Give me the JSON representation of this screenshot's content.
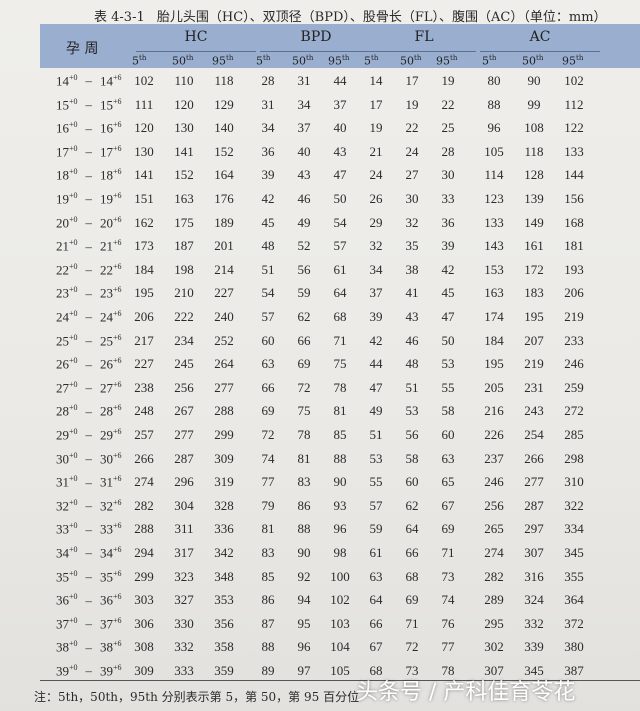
{
  "caption": {
    "table_number": "表 4-3-1",
    "title": "胎儿头围（HC）、双顶径（BPD）、股骨长（FL）、腹围（AC）（单位：mm）"
  },
  "header": {
    "row_label": "孕 周",
    "groups": [
      "HC",
      "BPD",
      "FL",
      "AC"
    ],
    "percentile_base": [
      "5",
      "50",
      "95"
    ],
    "percentile_suffix": "th"
  },
  "rows": [
    {
      "w": "14",
      "hc": [
        102,
        110,
        118
      ],
      "bpd": [
        28,
        31,
        44
      ],
      "fl": [
        14,
        17,
        19
      ],
      "ac": [
        80,
        90,
        102
      ]
    },
    {
      "w": "15",
      "hc": [
        111,
        120,
        129
      ],
      "bpd": [
        31,
        34,
        37
      ],
      "fl": [
        17,
        19,
        22
      ],
      "ac": [
        88,
        99,
        112
      ]
    },
    {
      "w": "16",
      "hc": [
        120,
        130,
        140
      ],
      "bpd": [
        34,
        37,
        40
      ],
      "fl": [
        19,
        22,
        25
      ],
      "ac": [
        96,
        108,
        122
      ]
    },
    {
      "w": "17",
      "hc": [
        130,
        141,
        152
      ],
      "bpd": [
        36,
        40,
        43
      ],
      "fl": [
        21,
        24,
        28
      ],
      "ac": [
        105,
        118,
        133
      ]
    },
    {
      "w": "18",
      "hc": [
        141,
        152,
        164
      ],
      "bpd": [
        39,
        43,
        47
      ],
      "fl": [
        24,
        27,
        30
      ],
      "ac": [
        114,
        128,
        144
      ]
    },
    {
      "w": "19",
      "hc": [
        151,
        163,
        176
      ],
      "bpd": [
        42,
        46,
        50
      ],
      "fl": [
        26,
        30,
        33
      ],
      "ac": [
        123,
        139,
        156
      ]
    },
    {
      "w": "20",
      "hc": [
        162,
        175,
        189
      ],
      "bpd": [
        45,
        49,
        54
      ],
      "fl": [
        29,
        32,
        36
      ],
      "ac": [
        133,
        149,
        168
      ]
    },
    {
      "w": "21",
      "hc": [
        173,
        187,
        201
      ],
      "bpd": [
        48,
        52,
        57
      ],
      "fl": [
        32,
        35,
        39
      ],
      "ac": [
        143,
        161,
        181
      ]
    },
    {
      "w": "22",
      "hc": [
        184,
        198,
        214
      ],
      "bpd": [
        51,
        56,
        61
      ],
      "fl": [
        34,
        38,
        42
      ],
      "ac": [
        153,
        172,
        193
      ]
    },
    {
      "w": "23",
      "hc": [
        195,
        210,
        227
      ],
      "bpd": [
        54,
        59,
        64
      ],
      "fl": [
        37,
        41,
        45
      ],
      "ac": [
        163,
        183,
        206
      ]
    },
    {
      "w": "24",
      "hc": [
        206,
        222,
        240
      ],
      "bpd": [
        57,
        62,
        68
      ],
      "fl": [
        39,
        43,
        47
      ],
      "ac": [
        174,
        195,
        219
      ]
    },
    {
      "w": "25",
      "hc": [
        217,
        234,
        252
      ],
      "bpd": [
        60,
        66,
        71
      ],
      "fl": [
        42,
        46,
        50
      ],
      "ac": [
        184,
        207,
        233
      ]
    },
    {
      "w": "26",
      "hc": [
        227,
        245,
        264
      ],
      "bpd": [
        63,
        69,
        75
      ],
      "fl": [
        44,
        48,
        53
      ],
      "ac": [
        195,
        219,
        246
      ]
    },
    {
      "w": "27",
      "hc": [
        238,
        256,
        277
      ],
      "bpd": [
        66,
        72,
        78
      ],
      "fl": [
        47,
        51,
        55
      ],
      "ac": [
        205,
        231,
        259
      ]
    },
    {
      "w": "28",
      "hc": [
        248,
        267,
        288
      ],
      "bpd": [
        69,
        75,
        81
      ],
      "fl": [
        49,
        53,
        58
      ],
      "ac": [
        216,
        243,
        272
      ]
    },
    {
      "w": "29",
      "hc": [
        257,
        277,
        299
      ],
      "bpd": [
        72,
        78,
        85
      ],
      "fl": [
        51,
        56,
        60
      ],
      "ac": [
        226,
        254,
        285
      ]
    },
    {
      "w": "30",
      "hc": [
        266,
        287,
        309
      ],
      "bpd": [
        74,
        81,
        88
      ],
      "fl": [
        53,
        58,
        63
      ],
      "ac": [
        237,
        266,
        298
      ]
    },
    {
      "w": "31",
      "hc": [
        274,
        296,
        319
      ],
      "bpd": [
        77,
        83,
        90
      ],
      "fl": [
        55,
        60,
        65
      ],
      "ac": [
        246,
        277,
        310
      ]
    },
    {
      "w": "32",
      "hc": [
        282,
        304,
        328
      ],
      "bpd": [
        79,
        86,
        93
      ],
      "fl": [
        57,
        62,
        67
      ],
      "ac": [
        256,
        287,
        322
      ]
    },
    {
      "w": "33",
      "hc": [
        288,
        311,
        336
      ],
      "bpd": [
        81,
        88,
        96
      ],
      "fl": [
        59,
        64,
        69
      ],
      "ac": [
        265,
        297,
        334
      ]
    },
    {
      "w": "34",
      "hc": [
        294,
        317,
        342
      ],
      "bpd": [
        83,
        90,
        98
      ],
      "fl": [
        61,
        66,
        71
      ],
      "ac": [
        274,
        307,
        345
      ]
    },
    {
      "w": "35",
      "hc": [
        299,
        323,
        348
      ],
      "bpd": [
        85,
        92,
        100
      ],
      "fl": [
        63,
        68,
        73
      ],
      "ac": [
        282,
        316,
        355
      ]
    },
    {
      "w": "36",
      "hc": [
        303,
        327,
        353
      ],
      "bpd": [
        86,
        94,
        102
      ],
      "fl": [
        64,
        69,
        74
      ],
      "ac": [
        289,
        324,
        364
      ]
    },
    {
      "w": "37",
      "hc": [
        306,
        330,
        356
      ],
      "bpd": [
        87,
        95,
        103
      ],
      "fl": [
        66,
        71,
        76
      ],
      "ac": [
        295,
        332,
        372
      ]
    },
    {
      "w": "38",
      "hc": [
        308,
        332,
        358
      ],
      "bpd": [
        88,
        96,
        104
      ],
      "fl": [
        67,
        72,
        77
      ],
      "ac": [
        302,
        339,
        380
      ]
    },
    {
      "w": "39",
      "hc": [
        309,
        333,
        359
      ],
      "bpd": [
        89,
        97,
        105
      ],
      "fl": [
        68,
        73,
        78
      ],
      "ac": [
        307,
        345,
        387
      ]
    }
  ],
  "week_suffix_start": "+0",
  "week_suffix_end": "+6",
  "week_separator": "–",
  "note": "注：5th，50th，95th 分别表示第 5，第 50，第 95 百分位",
  "watermark": "头条号 / 产科佳育苓花",
  "colors": {
    "header_bg": "#9aaed0",
    "text": "#2b2b2b"
  }
}
